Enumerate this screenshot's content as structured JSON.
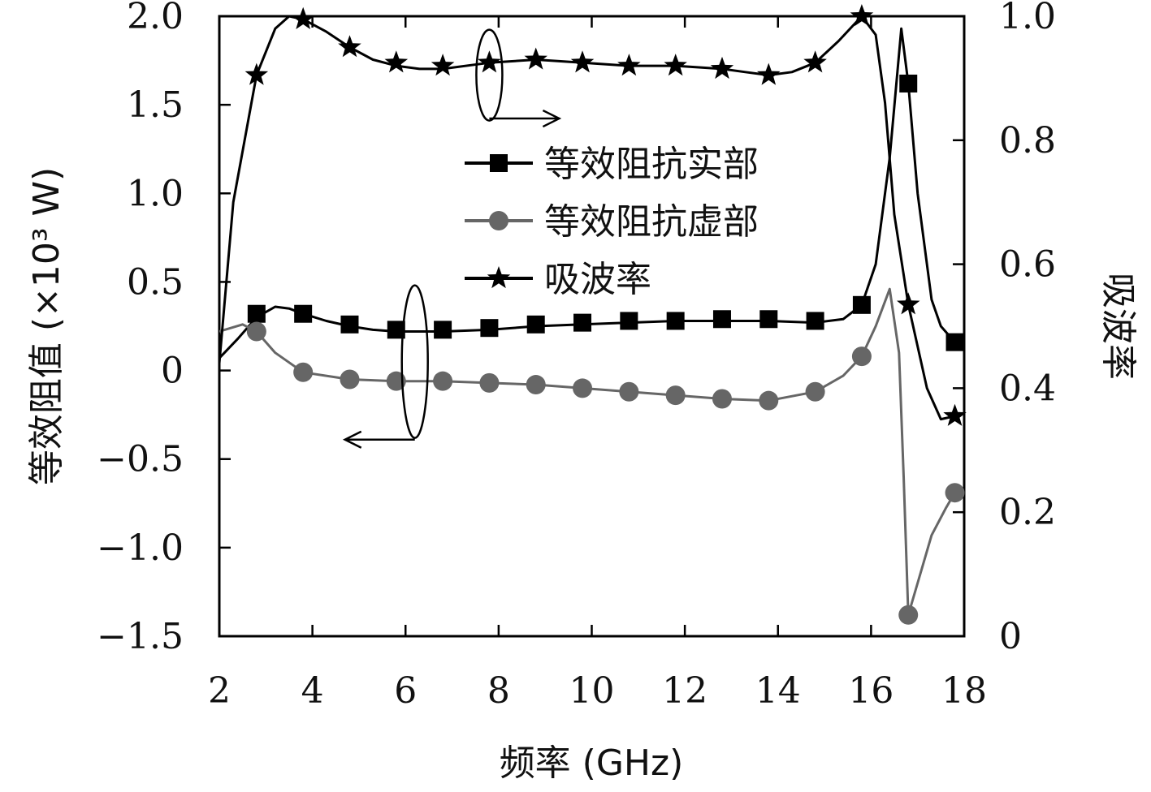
{
  "chart_data": {
    "type": "line",
    "xlabel": "频率 (GHz)",
    "ylabel_left": "等效阻值 (×10³ W)",
    "ylabel_right": "吸波率",
    "xlim": [
      2,
      18
    ],
    "ylim_left": [
      -1.5,
      2.0
    ],
    "ylim_right": [
      0,
      1.0
    ],
    "x_ticks": [
      "2",
      "4",
      "6",
      "8",
      "10",
      "12",
      "14",
      "16",
      "18"
    ],
    "y_left_ticks": [
      "2.0",
      "1.5",
      "1.0",
      "0.5",
      "0",
      "−0.5",
      "−1.0",
      "−1.5"
    ],
    "y_right_ticks": [
      "1.0",
      "0.8",
      "0.6",
      "0.4",
      "0.2",
      "0"
    ],
    "legend_position": "upper-center",
    "series": [
      {
        "name": "等效阻抗实部",
        "axis": "left",
        "color": "#000000",
        "marker": "square",
        "x": [
          2.8,
          3.8,
          4.8,
          5.8,
          6.8,
          7.8,
          8.8,
          9.8,
          10.8,
          11.8,
          12.8,
          13.8,
          14.8,
          15.8,
          16.8,
          17.8
        ],
        "values": [
          0.32,
          0.32,
          0.26,
          0.23,
          0.23,
          0.24,
          0.26,
          0.27,
          0.28,
          0.28,
          0.29,
          0.29,
          0.28,
          0.37,
          1.62,
          0.16
        ],
        "curve_x": [
          2.0,
          2.4,
          2.8,
          3.2,
          3.5,
          3.8,
          4.3,
          4.8,
          5.3,
          5.8,
          6.8,
          7.8,
          8.8,
          9.8,
          10.8,
          11.8,
          12.8,
          13.8,
          14.8,
          15.4,
          15.8,
          16.1,
          16.4,
          16.65,
          16.8,
          17.0,
          17.3,
          17.5,
          17.8
        ],
        "curve_y": [
          0.07,
          0.18,
          0.3,
          0.36,
          0.35,
          0.32,
          0.28,
          0.25,
          0.23,
          0.22,
          0.22,
          0.23,
          0.25,
          0.26,
          0.27,
          0.28,
          0.28,
          0.28,
          0.27,
          0.29,
          0.37,
          0.6,
          1.2,
          1.93,
          1.62,
          1.0,
          0.4,
          0.25,
          0.16
        ]
      },
      {
        "name": "等效阻抗虚部",
        "axis": "left",
        "color": "#666666",
        "marker": "circle",
        "x": [
          2.8,
          3.8,
          4.8,
          5.8,
          6.8,
          7.8,
          8.8,
          9.8,
          10.8,
          11.8,
          12.8,
          13.8,
          14.8,
          15.8,
          16.8,
          17.8
        ],
        "values": [
          0.22,
          -0.01,
          -0.05,
          -0.06,
          -0.06,
          -0.07,
          -0.08,
          -0.1,
          -0.12,
          -0.14,
          -0.16,
          -0.17,
          -0.12,
          0.08,
          -1.38,
          -0.69
        ],
        "curve_x": [
          2.0,
          2.5,
          2.8,
          3.2,
          3.8,
          4.8,
          5.8,
          6.8,
          7.8,
          8.8,
          9.8,
          10.8,
          11.8,
          12.8,
          13.8,
          14.8,
          15.4,
          15.8,
          16.1,
          16.4,
          16.6,
          16.7,
          16.8,
          17.0,
          17.3,
          17.6,
          17.8
        ],
        "curve_y": [
          0.22,
          0.26,
          0.22,
          0.1,
          -0.01,
          -0.05,
          -0.06,
          -0.06,
          -0.07,
          -0.08,
          -0.1,
          -0.12,
          -0.14,
          -0.16,
          -0.17,
          -0.12,
          -0.03,
          0.08,
          0.25,
          0.46,
          0.1,
          -0.6,
          -1.38,
          -1.2,
          -0.93,
          -0.78,
          -0.69
        ]
      },
      {
        "name": "吸波率",
        "axis": "right",
        "color": "#000000",
        "marker": "star",
        "x": [
          2.8,
          3.8,
          4.8,
          5.8,
          6.8,
          7.8,
          8.8,
          9.8,
          10.8,
          11.8,
          12.8,
          13.8,
          14.8,
          15.8,
          16.8,
          17.8
        ],
        "values": [
          0.905,
          0.995,
          0.95,
          0.925,
          0.92,
          0.925,
          0.93,
          0.925,
          0.92,
          0.92,
          0.915,
          0.905,
          0.925,
          1.0,
          0.535,
          0.355
        ],
        "curve_x": [
          2.0,
          2.3,
          2.8,
          3.2,
          3.5,
          3.8,
          4.3,
          4.8,
          5.3,
          5.8,
          6.3,
          6.8,
          7.8,
          8.8,
          9.8,
          10.8,
          11.8,
          12.8,
          13.3,
          13.8,
          14.3,
          14.8,
          15.3,
          15.8,
          16.1,
          16.3,
          16.5,
          16.8,
          17.2,
          17.5,
          17.8
        ],
        "curve_y": [
          0.44,
          0.7,
          0.905,
          0.98,
          1.0,
          0.995,
          0.975,
          0.95,
          0.93,
          0.92,
          0.915,
          0.915,
          0.925,
          0.93,
          0.925,
          0.92,
          0.92,
          0.915,
          0.91,
          0.905,
          0.91,
          0.925,
          0.96,
          1.0,
          0.97,
          0.86,
          0.68,
          0.535,
          0.4,
          0.35,
          0.355
        ]
      }
    ]
  }
}
